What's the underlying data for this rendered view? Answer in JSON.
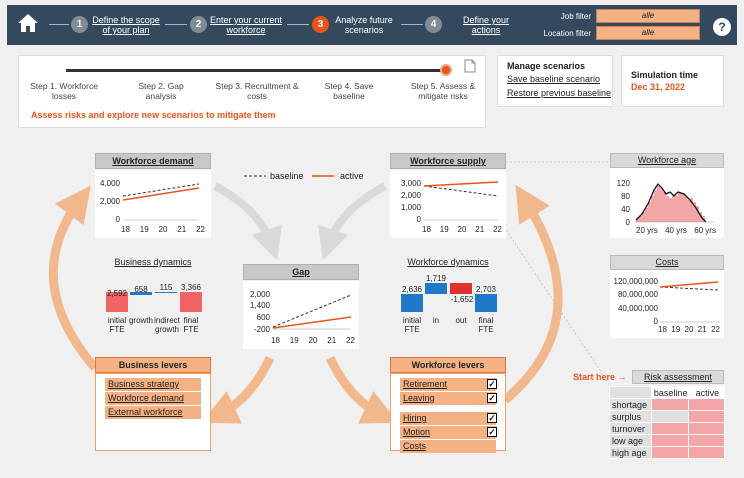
{
  "nav": {
    "steps": [
      {
        "num": "1",
        "line1": "Define the scope",
        "line2": "of your plan"
      },
      {
        "num": "2",
        "line1": "Enter your current",
        "line2": "workforce"
      },
      {
        "num": "3",
        "line1": "Analyze future",
        "line2": "scenarios"
      },
      {
        "num": "4",
        "line1": "Define your",
        "line2": "actions"
      }
    ],
    "job_filter_label": "Job filter",
    "job_filter_value": "alle",
    "location_filter_label": "Location filter",
    "location_filter_value": "alle",
    "help": "?"
  },
  "progress": {
    "steps": [
      {
        "line1": "Step 1. Workforce",
        "line2": "losses"
      },
      {
        "line1": "Step 2. Gap",
        "line2": "analysis"
      },
      {
        "line1": "Step 3. Recruitment &",
        "line2": "costs"
      },
      {
        "line1": "Step 4. Save",
        "line2": "baseline"
      },
      {
        "line1": "Step 5. Assess &",
        "line2": "mitigate risks"
      }
    ],
    "current_step": 5,
    "hint": "Assess risks and explore new scenarios to mitigate them"
  },
  "manage": {
    "title": "Manage scenarios",
    "save": "Save baseline scenario",
    "restore": "Restore previous baseline"
  },
  "simulation": {
    "label": "Simulation time",
    "date": "Dec 31, 2022"
  },
  "legend": {
    "baseline": "baseline",
    "active": "active"
  },
  "colors": {
    "accent": "#e8541c",
    "lever": "#f4b183",
    "arrow": "#f0b88c",
    "risk": "#f4a6a6",
    "gray_arrow": "#d9d9d9",
    "blue": "#1f78c8",
    "red": "#e03030"
  },
  "demand": {
    "title": "Workforce demand",
    "yticks": [
      "4,000",
      "2,000",
      "0"
    ],
    "xticks": [
      "18",
      "19",
      "20",
      "21",
      "22"
    ]
  },
  "supply": {
    "title": "Workforce supply",
    "yticks": [
      "3,000",
      "2,000",
      "1,000",
      "0"
    ],
    "xticks": [
      "18",
      "19",
      "20",
      "21",
      "22"
    ]
  },
  "gap": {
    "title": "Gap",
    "yticks": [
      "2,000",
      "1,400",
      "600",
      "-200"
    ],
    "xticks": [
      "18",
      "19",
      "20",
      "21",
      "22"
    ]
  },
  "age": {
    "title": "Workforce age",
    "yticks": [
      "120",
      "80",
      "40",
      "0"
    ],
    "xticks": [
      "20 yrs",
      "40 yrs",
      "60 yrs"
    ]
  },
  "costs": {
    "title": "Costs",
    "yticks": [
      "120,000,000",
      "80,000,000",
      "40,000,000",
      "0"
    ],
    "xticks": [
      "18",
      "19",
      "20",
      "21",
      "22"
    ]
  },
  "business_dynamics": {
    "title": "Business dynamics",
    "values": [
      "2,592",
      "658",
      "115",
      "3,366"
    ],
    "labels": [
      [
        "initial",
        "FTE"
      ],
      [
        "growth",
        ""
      ],
      [
        "indirect",
        "growth"
      ],
      [
        "final",
        "FTE"
      ]
    ]
  },
  "workforce_dynamics": {
    "title": "Workforce dynamics",
    "values": [
      "2,636",
      "1,719",
      "-1,652",
      "2,703"
    ],
    "labels": [
      [
        "initial",
        "FTE"
      ],
      [
        "in",
        ""
      ],
      [
        "out",
        ""
      ],
      [
        "final",
        "FTE"
      ]
    ]
  },
  "business_levers": {
    "title": "Business levers",
    "items": [
      "Business strategy",
      "Workforce demand",
      "External workforce"
    ]
  },
  "workforce_levers": {
    "title": "Workforce levers",
    "group1": [
      "Retirement",
      "Leaving"
    ],
    "group2": [
      "Hiring",
      "Motion",
      "Costs"
    ],
    "check": "✓"
  },
  "risk": {
    "start_here": "Start here →",
    "title": "Risk assessment",
    "col_baseline": "baseline",
    "col_active": "active",
    "rows": [
      "shortage",
      "surplus",
      "turnover",
      "low age",
      "high age"
    ]
  }
}
